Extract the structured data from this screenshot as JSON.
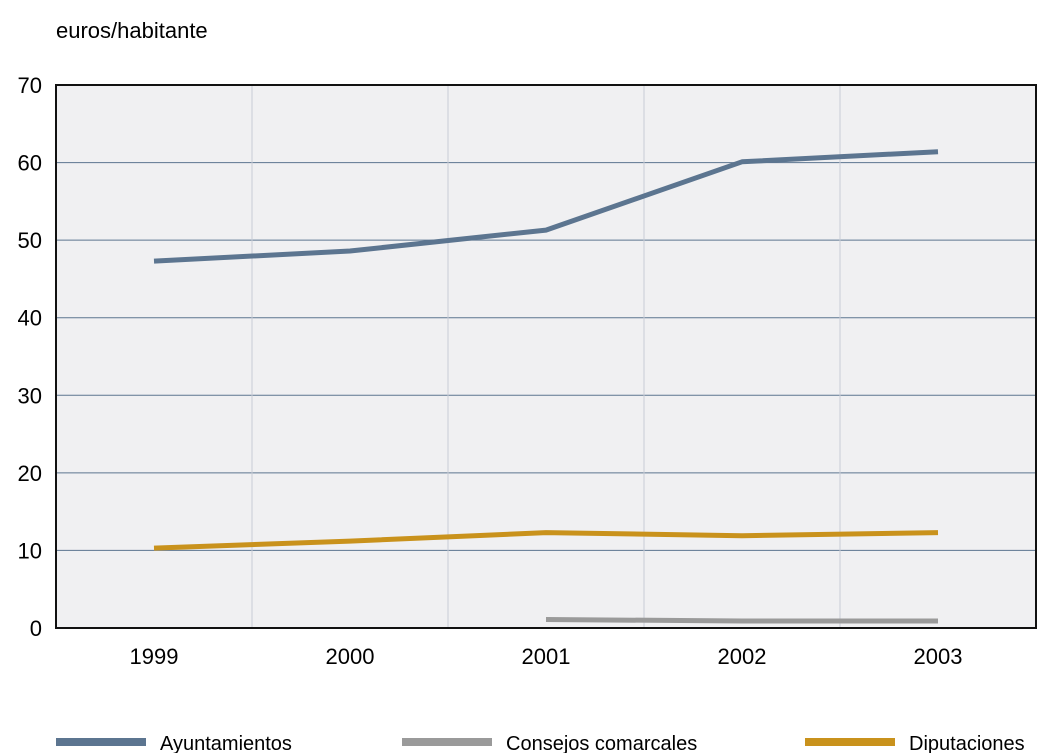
{
  "chart_data": {
    "type": "line",
    "ylabel": "euros/habitante",
    "categories": [
      "1999",
      "2000",
      "2001",
      "2002",
      "2003"
    ],
    "ylim": [
      0,
      70
    ],
    "yticks": [
      "0",
      "10",
      "20",
      "30",
      "40",
      "50",
      "60",
      "70"
    ],
    "grid": true,
    "legend_position": "bottom",
    "series": [
      {
        "name": "Ayuntamientos",
        "color": "#5c7590",
        "values": [
          47.3,
          48.6,
          51.3,
          60.1,
          61.4
        ]
      },
      {
        "name": "Consejos comarcales",
        "color": "#9a9a9a",
        "values": [
          null,
          null,
          1.1,
          0.9,
          0.9
        ]
      },
      {
        "name": "Diputaciones",
        "color": "#c9921c",
        "values": [
          10.3,
          11.2,
          12.3,
          11.9,
          12.3
        ]
      }
    ]
  }
}
